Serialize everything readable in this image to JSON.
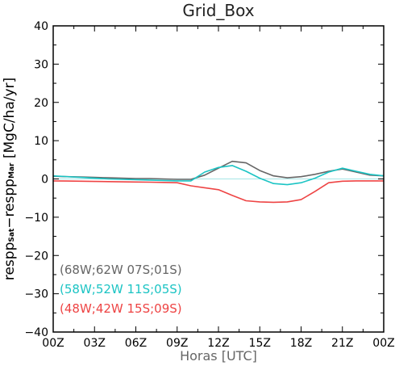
{
  "chart_data": {
    "type": "line",
    "title": "Grid_Box",
    "xlabel": "Horas [UTC]",
    "ylabel": {
      "part1": "respp",
      "sub1": "Sat",
      "part2": "−respp",
      "sub2": "Mar",
      "part3": " [MgC/ha/yr]"
    },
    "xlim": [
      0,
      24
    ],
    "ylim": [
      -40,
      40
    ],
    "xticks": [
      0,
      3,
      6,
      9,
      12,
      15,
      18,
      21,
      24
    ],
    "xtick_labels": [
      "00Z",
      "03Z",
      "06Z",
      "09Z",
      "12Z",
      "15Z",
      "18Z",
      "21Z",
      "00Z"
    ],
    "yticks": [
      -40,
      -30,
      -20,
      -10,
      0,
      10,
      20,
      30,
      40
    ],
    "ytick_labels": [
      "−40",
      "−30",
      "−20",
      "−10",
      "0",
      "10",
      "20",
      "30",
      "40"
    ],
    "zero_line_color": "#a6e6e6",
    "grid": false,
    "legend_position": "bottom-left",
    "x": [
      0,
      1,
      2,
      3,
      4,
      5,
      6,
      7,
      8,
      9,
      10,
      11,
      12,
      13,
      14,
      15,
      16,
      17,
      18,
      19,
      20,
      21,
      22,
      23,
      24
    ],
    "series": [
      {
        "name": "(68W;62W 07S;01S)",
        "color": "#666666",
        "values": [
          0.7,
          0.6,
          0.5,
          0.4,
          0.3,
          0.2,
          0.1,
          0.1,
          0.0,
          -0.1,
          -0.1,
          1.0,
          2.8,
          4.6,
          4.2,
          2.2,
          0.8,
          0.3,
          0.6,
          1.2,
          2.0,
          2.6,
          1.8,
          1.0,
          0.8
        ]
      },
      {
        "name": "(58W;52W 11S;05S)",
        "color": "#1cc4c4",
        "values": [
          0.8,
          0.6,
          0.4,
          0.2,
          0.0,
          -0.1,
          -0.2,
          -0.3,
          -0.4,
          -0.5,
          -0.5,
          1.8,
          3.0,
          3.5,
          2.0,
          0.2,
          -1.2,
          -1.5,
          -1.0,
          0.2,
          1.8,
          2.8,
          2.0,
          1.2,
          0.8
        ]
      },
      {
        "name": "(48W;42W 15S;09S)",
        "color": "#ee4444",
        "values": [
          -0.5,
          -0.55,
          -0.6,
          -0.65,
          -0.7,
          -0.75,
          -0.8,
          -0.85,
          -0.9,
          -1.0,
          -1.8,
          -2.3,
          -2.8,
          -4.3,
          -5.7,
          -6.0,
          -6.1,
          -6.0,
          -5.4,
          -3.3,
          -1.0,
          -0.6,
          -0.5,
          -0.5,
          -0.5
        ]
      }
    ]
  }
}
